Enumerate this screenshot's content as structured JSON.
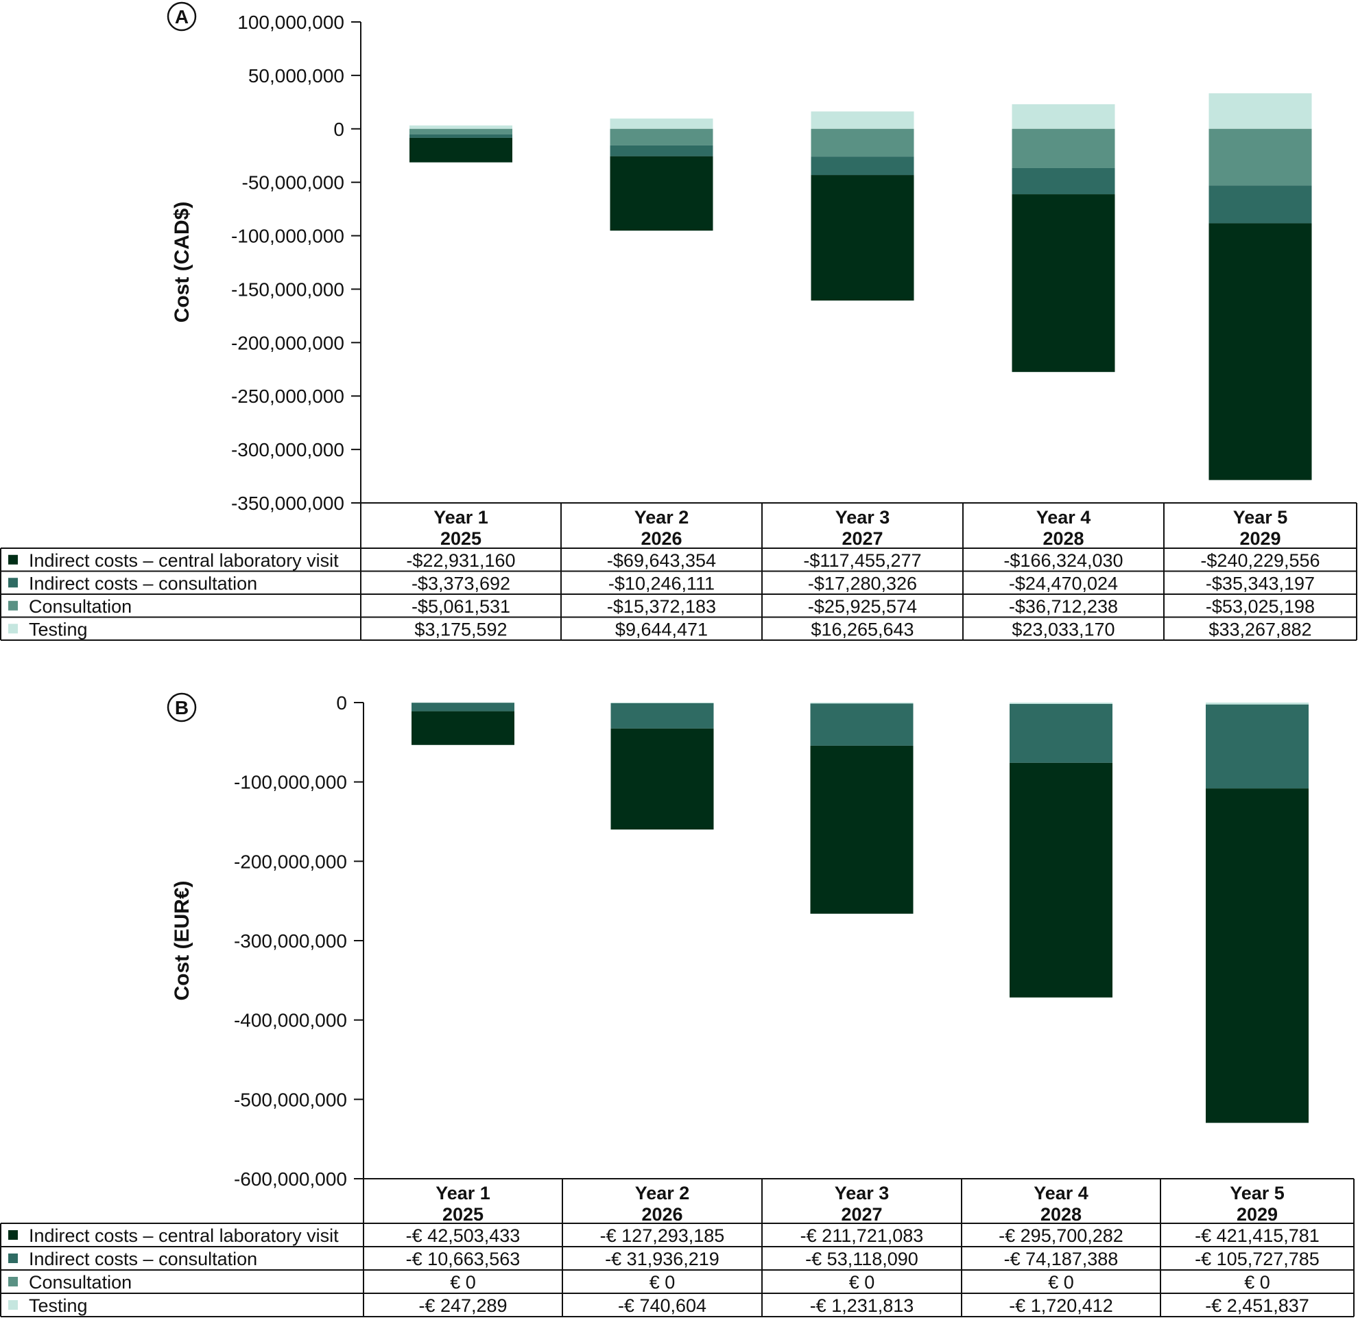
{
  "chart_data": [
    {
      "type": "bar",
      "stacked": true,
      "panel_label": "A",
      "ylabel": "Cost (CAD$)",
      "ylim": [
        -350000000,
        100000000
      ],
      "yticks": [
        100000000,
        50000000,
        0,
        -50000000,
        -100000000,
        -150000000,
        -200000000,
        -250000000,
        -300000000,
        -350000000
      ],
      "ytick_labels": [
        "100,000,000",
        "50,000,000",
        "0",
        "-50,000,000",
        "-100,000,000",
        "-150,000,000",
        "-200,000,000",
        "-250,000,000",
        "-300,000,000",
        "-350,000,000"
      ],
      "categories": [
        {
          "line1": "Year 1",
          "line2": "2025"
        },
        {
          "line1": "Year 2",
          "line2": "2026"
        },
        {
          "line1": "Year 3",
          "line2": "2027"
        },
        {
          "line1": "Year 4",
          "line2": "2028"
        },
        {
          "line1": "Year 5",
          "line2": "2029"
        }
      ],
      "series": [
        {
          "name": "Indirect costs – central laboratory visit",
          "color": "#002e17",
          "values": [
            -22931160,
            -69643354,
            -117455277,
            -166324030,
            -240229556
          ],
          "labels": [
            "-$22,931,160",
            "-$69,643,354",
            "-$117,455,277",
            "-$166,324,030",
            "-$240,229,556"
          ]
        },
        {
          "name": "Indirect costs – consultation",
          "color": "#2f6b63",
          "values": [
            -3373692,
            -10246111,
            -17280326,
            -24470024,
            -35343197
          ],
          "labels": [
            "-$3,373,692",
            "-$10,246,111",
            "-$17,280,326",
            "-$24,470,024",
            "-$35,343,197"
          ]
        },
        {
          "name": "Consultation",
          "color": "#5a9184",
          "values": [
            -5061531,
            -15372183,
            -25925574,
            -36712238,
            -53025198
          ],
          "labels": [
            "-$5,061,531",
            "-$15,372,183",
            "-$25,925,574",
            "-$36,712,238",
            "-$53,025,198"
          ]
        },
        {
          "name": "Testing",
          "color": "#c5e6df",
          "values": [
            3175592,
            9644471,
            16265643,
            23033170,
            33267882
          ],
          "labels": [
            "$3,175,592",
            "$9,644,471",
            "$16,265,643",
            "$23,033,170",
            "$33,267,882"
          ]
        }
      ]
    },
    {
      "type": "bar",
      "stacked": true,
      "panel_label": "B",
      "ylabel": "Cost (EUR€)",
      "ylim": [
        -600000000,
        0
      ],
      "yticks": [
        0,
        -100000000,
        -200000000,
        -300000000,
        -400000000,
        -500000000,
        -600000000
      ],
      "ytick_labels": [
        "0",
        "-100,000,000",
        "-200,000,000",
        "-300,000,000",
        "-400,000,000",
        "-500,000,000",
        "-600,000,000"
      ],
      "categories": [
        {
          "line1": "Year 1",
          "line2": "2025"
        },
        {
          "line1": "Year 2",
          "line2": "2026"
        },
        {
          "line1": "Year 3",
          "line2": "2027"
        },
        {
          "line1": "Year 4",
          "line2": "2028"
        },
        {
          "line1": "Year 5",
          "line2": "2029"
        }
      ],
      "series": [
        {
          "name": "Indirect costs – central laboratory visit",
          "color": "#002e17",
          "values": [
            -42503433,
            -127293185,
            -211721083,
            -295700282,
            -421415781
          ],
          "labels": [
            "-€ 42,503,433",
            "-€ 127,293,185",
            "-€ 211,721,083",
            "-€ 295,700,282",
            "-€ 421,415,781"
          ]
        },
        {
          "name": "Indirect costs – consultation",
          "color": "#2f6b63",
          "values": [
            -10663563,
            -31936219,
            -53118090,
            -74187388,
            -105727785
          ],
          "labels": [
            "-€ 10,663,563",
            "-€ 31,936,219",
            "-€ 53,118,090",
            "-€ 74,187,388",
            "-€ 105,727,785"
          ]
        },
        {
          "name": "Consultation",
          "color": "#5a9184",
          "values": [
            0,
            0,
            0,
            0,
            0
          ],
          "labels": [
            "€ 0",
            "€ 0",
            "€ 0",
            "€ 0",
            "€ 0"
          ]
        },
        {
          "name": "Testing",
          "color": "#c5e6df",
          "values": [
            -247289,
            -740604,
            -1231813,
            -1720412,
            -2451837
          ],
          "labels": [
            "-€ 247,289",
            "-€ 740,604",
            "-€ 1,231,813",
            "-€ 1,720,412",
            "-€ 2,451,837"
          ]
        }
      ]
    }
  ]
}
